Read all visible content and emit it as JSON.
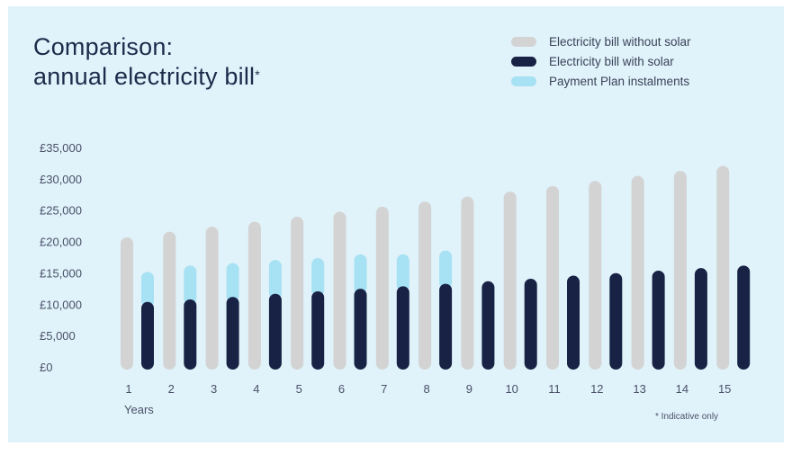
{
  "title_line1": "Comparison:",
  "title_line2": "annual electricity bill",
  "title_mark": "*",
  "footnote": "* Indicative only",
  "colors": {
    "background": "#e0f2fa",
    "without_solar": "#d3d3d3",
    "with_solar": "#172244",
    "payment_plan": "#a7e1f4"
  },
  "chart_data": {
    "type": "bar",
    "xlabel": "Years",
    "ylabel": "",
    "ylim": [
      0,
      35000
    ],
    "yticks": [
      "£0",
      "£5,000",
      "£10,000",
      "£15,000",
      "£20,000",
      "£25,000",
      "£30,000",
      "£35,000"
    ],
    "categories": [
      "1",
      "2",
      "3",
      "4",
      "5",
      "6",
      "7",
      "8",
      "9",
      "10",
      "11",
      "12",
      "13",
      "14",
      "15"
    ],
    "series": [
      {
        "name": "Electricity bill without solar",
        "color": "#d3d3d3",
        "values": [
          20800,
          21700,
          22500,
          23300,
          24100,
          24900,
          25700,
          26500,
          27300,
          28100,
          29000,
          29800,
          30600,
          31400,
          32200
        ]
      },
      {
        "name": "Electricity bill with solar",
        "color": "#172244",
        "values": [
          10500,
          10900,
          11300,
          11800,
          12200,
          12600,
          13000,
          13400,
          13800,
          14200,
          14700,
          15100,
          15500,
          15900,
          16300
        ]
      },
      {
        "name": "Payment Plan instalments",
        "color": "#a7e1f4",
        "stacked_on": "Electricity bill with solar",
        "values": [
          4800,
          5400,
          5400,
          5400,
          5300,
          5500,
          5100,
          5300,
          null,
          null,
          null,
          null,
          null,
          null,
          null
        ]
      }
    ],
    "grid": false,
    "legend_position": "top-right"
  }
}
